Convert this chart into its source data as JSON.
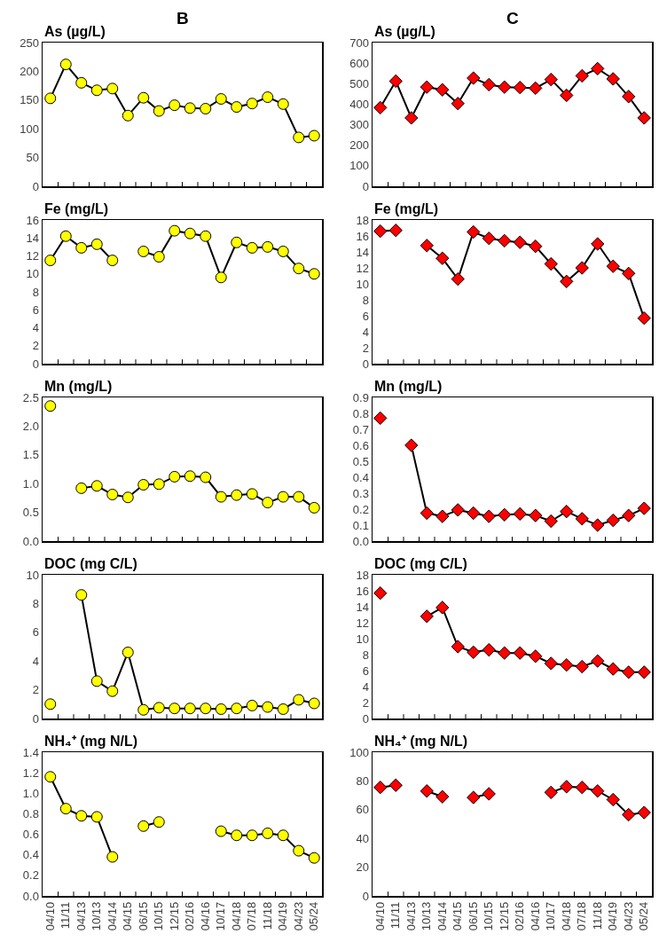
{
  "chart_data": [
    {
      "type": "line",
      "title": "As (µg/L)",
      "annotations": [
        "B"
      ],
      "categories": [
        null,
        null,
        null,
        null,
        null,
        null,
        null,
        null,
        null,
        null,
        null,
        null,
        null,
        null,
        null,
        null,
        null,
        null
      ],
      "series": [
        {
          "color": "#ffff00",
          "values": [
            153,
            212,
            180,
            167,
            170,
            123,
            154,
            131,
            141,
            136,
            135,
            152,
            138,
            144,
            155,
            143,
            85,
            88
          ]
        }
      ],
      "ylim": [
        0,
        250
      ],
      "yticks": [
        0,
        50,
        100,
        150,
        200,
        250
      ],
      "marker": "circle",
      "line_style": "solid",
      "tick_labels": "y",
      "grid": false
    },
    {
      "type": "line",
      "title": "As (µg/L)",
      "annotations": [
        "C"
      ],
      "categories": [
        null,
        null,
        null,
        null,
        null,
        null,
        null,
        null,
        null,
        null,
        null,
        null,
        null,
        null,
        null,
        null,
        null,
        null
      ],
      "series": [
        {
          "color": "#ff0000",
          "values": [
            383,
            512,
            333,
            483,
            470,
            403,
            527,
            495,
            483,
            481,
            478,
            520,
            443,
            538,
            573,
            523,
            437,
            333
          ]
        }
      ],
      "ylim": [
        0,
        700
      ],
      "yticks": [
        0,
        100,
        200,
        300,
        400,
        500,
        600,
        700
      ],
      "marker": "diamond",
      "line_style": "solid",
      "tick_labels": "y",
      "grid": false
    },
    {
      "type": "line",
      "title": "Fe (mg/L)",
      "categories": [
        null,
        null,
        null,
        null,
        null,
        null,
        null,
        null,
        null,
        null,
        null,
        null,
        null,
        null,
        null,
        null,
        null,
        null
      ],
      "series": [
        {
          "color": "#ffff00",
          "values": [
            11.5,
            14.2,
            12.9,
            13.3,
            11.5,
            null,
            12.5,
            11.9,
            14.8,
            14.5,
            14.2,
            9.6,
            13.5,
            12.9,
            13.0,
            12.5,
            10.6,
            10.0
          ]
        }
      ],
      "ylim": [
        0,
        16
      ],
      "yticks": [
        0,
        2,
        4,
        6,
        8,
        10,
        12,
        14,
        16
      ],
      "marker": "circle",
      "line_style": "solid",
      "tick_labels": "y",
      "grid": false
    },
    {
      "type": "line",
      "title": "Fe (mg/L)",
      "categories": [
        null,
        null,
        null,
        null,
        null,
        null,
        null,
        null,
        null,
        null,
        null,
        null,
        null,
        null,
        null,
        null,
        null,
        null
      ],
      "series": [
        {
          "color": "#ff0000",
          "values": [
            16.6,
            16.7,
            null,
            14.8,
            13.2,
            10.6,
            16.5,
            15.7,
            15.4,
            15.2,
            14.7,
            12.5,
            10.3,
            12.0,
            15.0,
            12.2,
            11.3,
            5.7
          ]
        }
      ],
      "ylim": [
        0,
        18
      ],
      "yticks": [
        0,
        2,
        4,
        6,
        8,
        10,
        12,
        14,
        16,
        18
      ],
      "marker": "diamond",
      "line_style": "solid",
      "tick_labels": "y",
      "grid": false
    },
    {
      "type": "line",
      "title": "Mn (mg/L)",
      "categories": [
        null,
        null,
        null,
        null,
        null,
        null,
        null,
        null,
        null,
        null,
        null,
        null,
        null,
        null,
        null,
        null,
        null,
        null
      ],
      "series": [
        {
          "color": "#ffff00",
          "values": [
            2.35,
            null,
            0.92,
            0.96,
            0.81,
            0.76,
            0.98,
            0.99,
            1.12,
            1.13,
            1.11,
            0.77,
            0.8,
            0.82,
            0.67,
            0.77,
            0.77,
            0.58
          ]
        }
      ],
      "ylim": [
        0,
        2.5
      ],
      "yticks": [
        {
          "value": 0,
          "label": "0.0"
        },
        0.5,
        {
          "value": 1,
          "label": "1.0"
        },
        1.5,
        {
          "value": 2,
          "label": "2.0"
        },
        2.5
      ],
      "marker": "circle",
      "line_style": "solid",
      "tick_labels": "y",
      "grid": false
    },
    {
      "type": "line",
      "title": "Mn (mg/L)",
      "categories": [
        null,
        null,
        null,
        null,
        null,
        null,
        null,
        null,
        null,
        null,
        null,
        null,
        null,
        null,
        null,
        null,
        null,
        null
      ],
      "series": [
        {
          "color": "#ff0000",
          "values": [
            0.77,
            null,
            0.6,
            0.175,
            0.155,
            0.195,
            0.175,
            0.155,
            0.165,
            0.17,
            0.16,
            0.125,
            0.185,
            0.14,
            0.1,
            0.13,
            0.16,
            0.205
          ]
        }
      ],
      "ylim": [
        0,
        0.9
      ],
      "yticks": [
        {
          "value": 0,
          "label": "0.0"
        },
        0.1,
        0.2,
        0.3,
        0.4,
        0.5,
        0.6,
        0.7,
        0.8,
        0.9
      ],
      "marker": "diamond",
      "line_style": "solid",
      "tick_labels": "y",
      "grid": false
    },
    {
      "type": "line",
      "title": "DOC (mg C/L)",
      "categories": [
        null,
        null,
        null,
        null,
        null,
        null,
        null,
        null,
        null,
        null,
        null,
        null,
        null,
        null,
        null,
        null,
        null,
        null
      ],
      "series": [
        {
          "color": "#ffff00",
          "values": [
            1.0,
            null,
            8.6,
            2.6,
            1.9,
            4.6,
            0.6,
            0.75,
            0.7,
            0.7,
            0.7,
            0.65,
            0.7,
            0.9,
            0.8,
            0.65,
            1.3,
            1.05
          ]
        }
      ],
      "ylim": [
        0,
        10
      ],
      "yticks": [
        0,
        2,
        4,
        6,
        8,
        10
      ],
      "marker": "circle",
      "line_style": "solid",
      "tick_labels": "y",
      "grid": false
    },
    {
      "type": "line",
      "title": "DOC (mg C/L)",
      "categories": [
        null,
        null,
        null,
        null,
        null,
        null,
        null,
        null,
        null,
        null,
        null,
        null,
        null,
        null,
        null,
        null,
        null,
        null
      ],
      "series": [
        {
          "color": "#ff0000",
          "values": [
            15.7,
            null,
            null,
            12.8,
            13.9,
            9.0,
            8.3,
            8.6,
            8.2,
            8.2,
            7.8,
            6.9,
            6.7,
            6.5,
            7.2,
            6.2,
            5.8,
            5.8
          ]
        }
      ],
      "ylim": [
        0,
        18
      ],
      "yticks": [
        0,
        2,
        4,
        6,
        8,
        10,
        12,
        14,
        16,
        18
      ],
      "marker": "diamond",
      "line_style": "solid",
      "tick_labels": "y",
      "grid": false
    },
    {
      "type": "line",
      "title": "NH₄⁺ (mg N/L)",
      "categories": [
        "04/10",
        "11/11",
        "04/13",
        "10/13",
        "04/14",
        "04/15",
        "06/15",
        "10/15",
        "12/15",
        "02/16",
        "04/16",
        "10/17",
        "04/18",
        "07/18",
        "11/18",
        "04/19",
        "04/23",
        "05/24"
      ],
      "series": [
        {
          "color": "#ffff00",
          "values": [
            1.16,
            0.85,
            0.78,
            0.77,
            0.38,
            null,
            0.68,
            0.72,
            null,
            null,
            null,
            0.63,
            0.59,
            0.59,
            0.61,
            0.59,
            0.44,
            0.37
          ]
        }
      ],
      "ylim": [
        0,
        1.4
      ],
      "yticks": [
        {
          "value": 0,
          "label": "0.0"
        },
        0.2,
        0.4,
        0.6,
        0.8,
        {
          "value": 1,
          "label": "1.0"
        },
        1.2,
        1.4
      ],
      "marker": "circle",
      "line_style": "solid",
      "grid": false
    },
    {
      "type": "line",
      "title": "NH₄⁺ (mg N/L)",
      "categories": [
        "04/10",
        "11/11",
        "04/13",
        "10/13",
        "04/14",
        "04/15",
        "06/15",
        "10/15",
        "12/15",
        "02/16",
        "04/16",
        "10/17",
        "04/18",
        "07/18",
        "11/18",
        "04/19",
        "04/23",
        "05/24"
      ],
      "series": [
        {
          "color": "#ff0000",
          "values": [
            75.5,
            77,
            null,
            73,
            69,
            null,
            68.5,
            71,
            null,
            null,
            null,
            72,
            76,
            75.5,
            73,
            67,
            56.5,
            58
          ]
        }
      ],
      "ylim": [
        0,
        100
      ],
      "yticks": [
        0,
        20,
        40,
        60,
        80,
        100
      ],
      "marker": "diamond",
      "line_style": "solid",
      "grid": false
    }
  ]
}
